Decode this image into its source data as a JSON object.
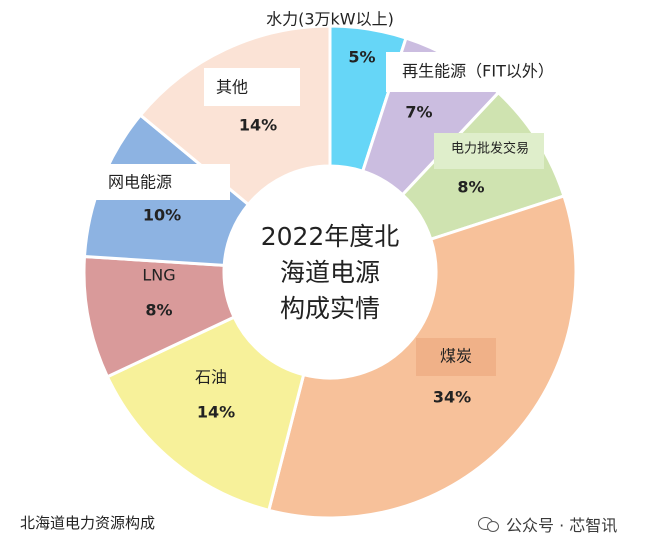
{
  "chart_data": {
    "type": "pie",
    "center_label_lines": [
      "2022年度北",
      "海道电源",
      "构成实情"
    ],
    "slices": [
      {
        "label": "水力(3万kW以上)",
        "value": 5,
        "value_label": "5%",
        "color": "#66d6f7"
      },
      {
        "label": "再生能源（FIT以外）",
        "value": 7,
        "value_label": "7%",
        "color": "#cbbde0"
      },
      {
        "label": "电力批发交易",
        "value": 8,
        "value_label": "8%",
        "color": "#cfe3b0"
      },
      {
        "label": "煤炭",
        "value": 34,
        "value_label": "34%",
        "color": "#f7c19a"
      },
      {
        "label": "石油",
        "value": 14,
        "value_label": "14%",
        "color": "#f7f19a"
      },
      {
        "label": "LNG",
        "value": 8,
        "value_label": "8%",
        "color": "#d99a9a"
      },
      {
        "label": "网电能源",
        "value": 10,
        "value_label": "10%",
        "color": "#8db3e2"
      },
      {
        "label": "其他",
        "value": 14,
        "value_label": "14%",
        "color": "#fbe3d6"
      }
    ]
  },
  "caption": "北海道电力资源构成",
  "watermark": {
    "icon": "wechat-icon",
    "text": "公众号 · 芯智讯"
  }
}
